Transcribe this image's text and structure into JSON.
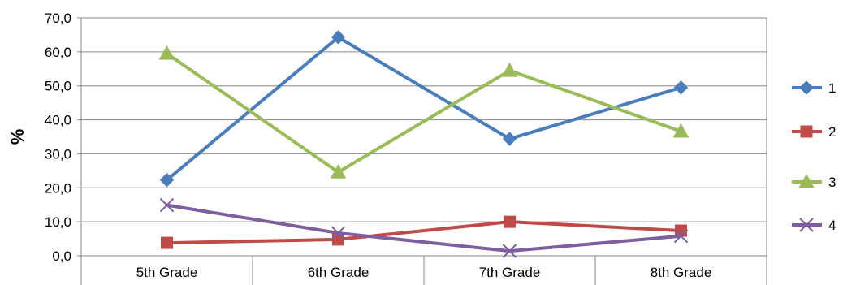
{
  "chart_data": {
    "type": "line",
    "title": "",
    "xlabel": "",
    "ylabel": "%",
    "categories": [
      "5th Grade",
      "6th Grade",
      "7th Grade",
      "8th Grade"
    ],
    "yticks": [
      "0,0",
      "10,0",
      "20,0",
      "30,0",
      "40,0",
      "50,0",
      "60,0",
      "70,0"
    ],
    "ylim": [
      0,
      70
    ],
    "grid": true,
    "legend_position": "right",
    "series": [
      {
        "name": "1",
        "values": [
          22.3,
          64.3,
          34.4,
          49.5
        ],
        "color": "#4a7ebb",
        "marker": "diamond"
      },
      {
        "name": "2",
        "values": [
          3.8,
          4.8,
          10.0,
          7.4
        ],
        "color": "#be4b48",
        "marker": "square"
      },
      {
        "name": "3",
        "values": [
          59.5,
          24.6,
          54.5,
          36.6
        ],
        "color": "#9bbb59",
        "marker": "triangle"
      },
      {
        "name": "4",
        "values": [
          14.9,
          6.7,
          1.4,
          5.8
        ],
        "color": "#7d5fa0",
        "marker": "x"
      }
    ]
  }
}
